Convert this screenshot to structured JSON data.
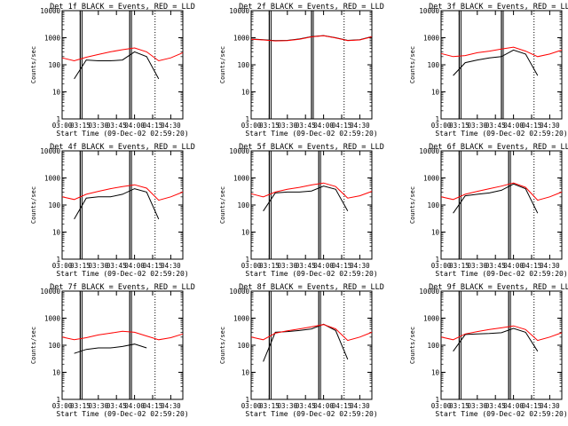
{
  "chart_data": {
    "type": "line",
    "xlabel": "Start Time (09-Dec-02 02:59:20)",
    "ylabel": "Counts/sec",
    "ylim": [
      1,
      10000
    ],
    "yscale": "log",
    "y_ticks": [
      "1",
      "10",
      "100",
      "1000",
      "10000"
    ],
    "x_range": [
      "03:00",
      "04:40"
    ],
    "x_ticks": [
      "03:00",
      "03:15",
      "03:30",
      "03:45",
      "04:00",
      "04:15",
      "04:30"
    ],
    "x_tick_minutes": [
      0,
      15,
      30,
      45,
      60,
      75,
      90
    ],
    "legend": {
      "black": "Events",
      "red": "LLD"
    },
    "colors": {
      "events": "#000000",
      "lld": "#ff0000"
    },
    "panels": [
      {
        "detector": "1f",
        "title": "Det 1f BLACK = Events, RED = LLD",
        "x": [
          0,
          10,
          20,
          30,
          40,
          50,
          60,
          70,
          80,
          90,
          100
        ],
        "series": [
          {
            "name": "Events",
            "color": "#000000",
            "values": [
              null,
              30,
              150,
              140,
              140,
              150,
              300,
              200,
              30,
              null,
              null
            ]
          },
          {
            "name": "LLD",
            "color": "#ff0000",
            "values": [
              180,
              140,
              190,
              240,
              300,
              360,
              420,
              300,
              140,
              180,
              280
            ]
          }
        ],
        "vlines_solid": [
          15,
          56
        ],
        "vlines_dotted": [
          77
        ]
      },
      {
        "detector": "2f",
        "title": "Det 2f BLACK = Events, RED = LLD",
        "x": [
          0,
          10,
          20,
          30,
          40,
          50,
          60,
          70,
          80,
          90,
          100
        ],
        "series": [
          {
            "name": "Events",
            "color": "#000000",
            "values": [
              900,
              850,
              780,
              800,
              900,
              1100,
              1200,
              1000,
              800,
              850,
              1100
            ]
          },
          {
            "name": "LLD",
            "color": "#ff0000",
            "values": [
              880,
              830,
              760,
              780,
              880,
              1080,
              1180,
              980,
              780,
              830,
              1080
            ]
          }
        ],
        "vlines_solid": [
          15,
          50
        ],
        "vlines_dotted": [
          77
        ]
      },
      {
        "detector": "3f",
        "title": "Det 3f BLACK = Events, RED = LLD",
        "x": [
          0,
          10,
          20,
          30,
          40,
          50,
          60,
          70,
          80,
          90,
          100
        ],
        "series": [
          {
            "name": "Events",
            "color": "#000000",
            "values": [
              null,
              40,
              120,
              150,
              180,
              200,
              350,
              250,
              40,
              null,
              null
            ]
          },
          {
            "name": "LLD",
            "color": "#ff0000",
            "values": [
              260,
              200,
              220,
              280,
              320,
              380,
              450,
              320,
              200,
              250,
              350
            ]
          }
        ],
        "vlines_solid": [
          15,
          50
        ],
        "vlines_dotted": [
          77
        ]
      },
      {
        "detector": "4f",
        "title": "Det 4f BLACK = Events, RED = LLD",
        "x": [
          0,
          10,
          20,
          30,
          40,
          50,
          60,
          70,
          80,
          90,
          100
        ],
        "series": [
          {
            "name": "Events",
            "color": "#000000",
            "values": [
              null,
              30,
              180,
              200,
              200,
              250,
              400,
              300,
              30,
              null,
              null
            ]
          },
          {
            "name": "LLD",
            "color": "#ff0000",
            "values": [
              200,
              160,
              250,
              320,
              400,
              480,
              560,
              420,
              150,
              200,
              300
            ]
          }
        ],
        "vlines_solid": [
          15,
          56
        ],
        "vlines_dotted": [
          77
        ]
      },
      {
        "detector": "5f",
        "title": "Det 5f BLACK = Events, RED = LLD",
        "x": [
          0,
          10,
          20,
          30,
          40,
          50,
          60,
          70,
          80,
          90,
          100
        ],
        "series": [
          {
            "name": "Events",
            "color": "#000000",
            "values": [
              null,
              60,
              280,
              300,
              300,
              330,
              500,
              380,
              60,
              null,
              null
            ]
          },
          {
            "name": "LLD",
            "color": "#ff0000",
            "values": [
              260,
              200,
              300,
              380,
              450,
              550,
              650,
              480,
              180,
              220,
              320
            ]
          }
        ],
        "vlines_solid": [
          15,
          56
        ],
        "vlines_dotted": [
          77
        ]
      },
      {
        "detector": "6f",
        "title": "Det 6f BLACK = Events, RED = LLD",
        "x": [
          0,
          10,
          20,
          30,
          40,
          50,
          60,
          70,
          80,
          90,
          100
        ],
        "series": [
          {
            "name": "Events",
            "color": "#000000",
            "values": [
              null,
              50,
              220,
              250,
              280,
              350,
              600,
              400,
              50,
              null,
              null
            ]
          },
          {
            "name": "LLD",
            "color": "#ff0000",
            "values": [
              200,
              160,
              250,
              320,
              400,
              500,
              650,
              450,
              150,
              200,
              300
            ]
          }
        ],
        "vlines_solid": [
          15,
          56
        ],
        "vlines_dotted": [
          77
        ]
      },
      {
        "detector": "7f",
        "title": "Det 7f BLACK = Events, RED = LLD",
        "x": [
          0,
          10,
          20,
          30,
          40,
          50,
          60,
          70,
          80,
          90,
          100
        ],
        "series": [
          {
            "name": "Events",
            "color": "#000000",
            "values": [
              null,
              50,
              70,
              80,
              80,
              90,
              110,
              80,
              null,
              null,
              null
            ]
          },
          {
            "name": "LLD",
            "color": "#ff0000",
            "values": [
              200,
              160,
              190,
              240,
              280,
              330,
              300,
              220,
              160,
              190,
              260
            ]
          }
        ],
        "vlines_solid": [
          15,
          56
        ],
        "vlines_dotted": [
          77
        ]
      },
      {
        "detector": "8f",
        "title": "Det 8f BLACK = Events, RED = LLD",
        "x": [
          0,
          10,
          20,
          30,
          40,
          50,
          60,
          70,
          80,
          90,
          100
        ],
        "series": [
          {
            "name": "Events",
            "color": "#000000",
            "values": [
              null,
              25,
              300,
              320,
              350,
              400,
              600,
              350,
              30,
              null,
              null
            ]
          },
          {
            "name": "LLD",
            "color": "#ff0000",
            "values": [
              200,
              160,
              280,
              340,
              400,
              480,
              580,
              400,
              150,
              200,
              300
            ]
          }
        ],
        "vlines_solid": [
          15,
          56
        ],
        "vlines_dotted": [
          77
        ]
      },
      {
        "detector": "9f",
        "title": "Det 9f BLACK = Events, RED = LLD",
        "x": [
          0,
          10,
          20,
          30,
          40,
          50,
          60,
          70,
          80,
          90,
          100
        ],
        "series": [
          {
            "name": "Events",
            "color": "#000000",
            "values": [
              null,
              60,
              250,
              260,
              270,
              290,
              420,
              300,
              60,
              null,
              null
            ]
          },
          {
            "name": "LLD",
            "color": "#ff0000",
            "values": [
              200,
              160,
              260,
              320,
              380,
              440,
              520,
              380,
              150,
              200,
              290
            ]
          }
        ],
        "vlines_solid": [
          15,
          56
        ],
        "vlines_dotted": [
          77
        ]
      }
    ]
  }
}
